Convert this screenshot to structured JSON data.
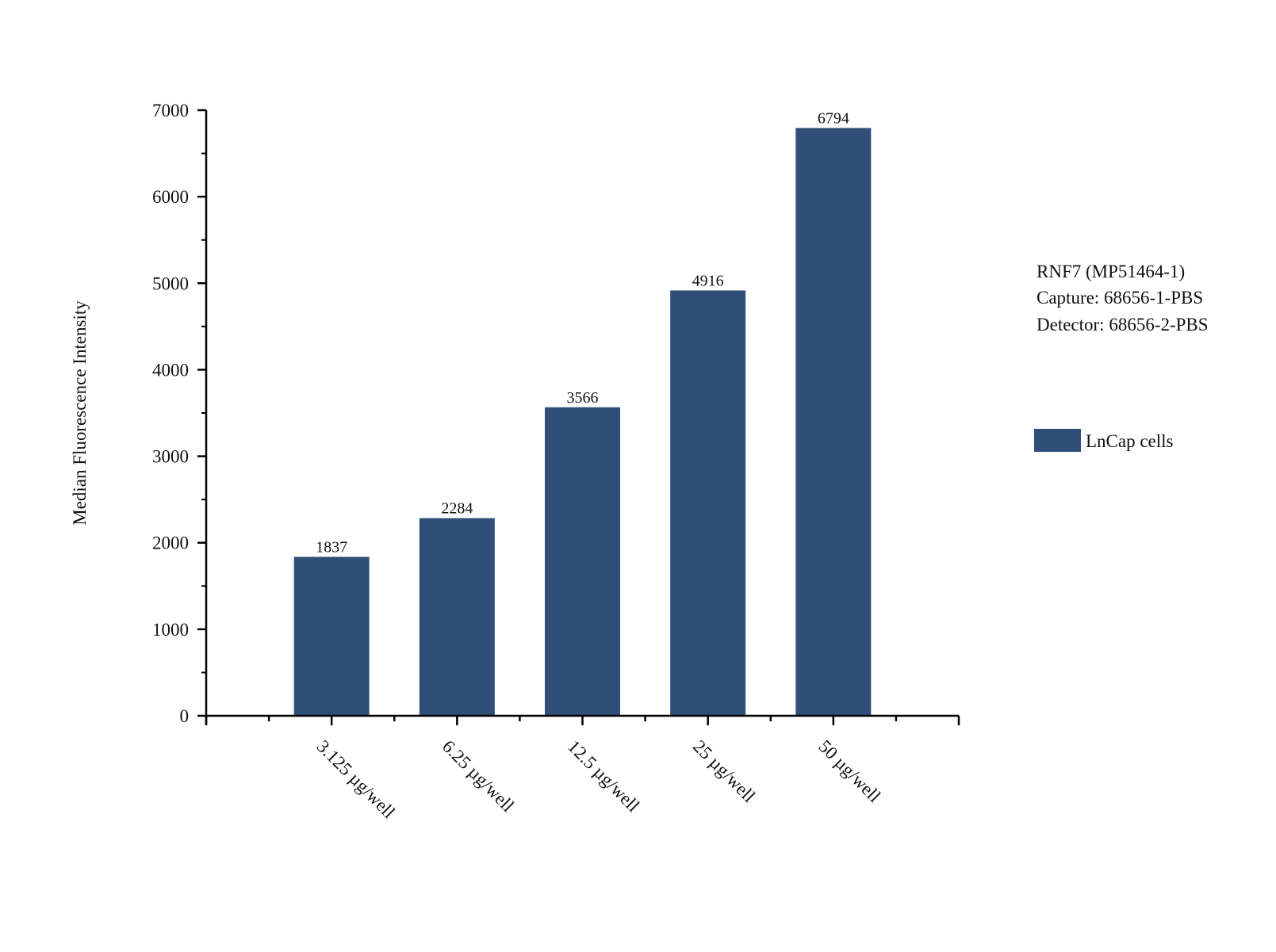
{
  "chart_data": {
    "type": "bar",
    "title": "",
    "xlabel": "",
    "ylabel": "Median Fluorescence Intensity",
    "categories": [
      "3.125 µg/well",
      "6.25 µg/well",
      "12.5 µg/well",
      "25 µg/well",
      "50 µg/well"
    ],
    "series": [
      {
        "name": "LnCap cells",
        "values": [
          1837,
          2284,
          3566,
          4916,
          6794
        ],
        "color": "#2f4f78"
      }
    ],
    "data_labels": [
      "1837",
      "2284",
      "3566",
      "4916",
      "6794"
    ],
    "ylim": [
      0,
      7000
    ],
    "yticks": [
      0,
      1000,
      2000,
      3000,
      4000,
      5000,
      6000,
      7000
    ],
    "grid": false,
    "legend_position": "right"
  },
  "annotation": {
    "lines": [
      "RNF7 (MP51464-1)",
      "Capture: 68656-1-PBS",
      "Detector: 68656-2-PBS"
    ]
  }
}
